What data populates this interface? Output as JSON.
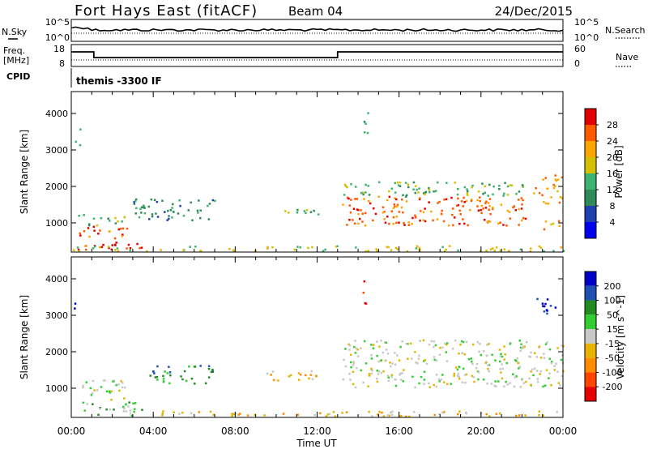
{
  "header": {
    "radar": "Fort Hays East (fitACF)",
    "beam": "Beam 04",
    "date": "24/Dec/2015"
  },
  "noise_panel": {
    "left_label": "N.Sky",
    "left_ticks": [
      "10^5",
      "10^0"
    ],
    "right_label": "N.Search",
    "right_ticks": [
      "10^5",
      "10^0"
    ]
  },
  "freq_panel": {
    "left_label_1": "Freq.",
    "left_label_2": "[MHz]",
    "left_ticks": [
      "18",
      "8"
    ],
    "right_label": "Nave",
    "right_ticks": [
      "60",
      "0"
    ]
  },
  "cpid": {
    "label": "CPID",
    "value": "themis -3300 IF"
  },
  "x_axis": {
    "label": "Time UT",
    "ticks": [
      "00:00",
      "04:00",
      "08:00",
      "12:00",
      "16:00",
      "20:00",
      "00:00"
    ]
  },
  "colors": {
    "power": [
      "#0000f0",
      "#2040b0",
      "#2e8b57",
      "#3cb371",
      "#d4c000",
      "#ffa500",
      "#ff5a00",
      "#e00000"
    ],
    "velocity": [
      "#0000c8",
      "#1e50b4",
      "#228b22",
      "#32cd32",
      "#c8c8c8",
      "#e6b400",
      "#ff8c00",
      "#ff4500",
      "#e60000"
    ]
  },
  "chart_data": [
    {
      "type": "heatmap",
      "panel": "power",
      "ylabel": "Slant Range [km]",
      "yticks": [
        "1000",
        "2000",
        "3000",
        "4000"
      ],
      "ylim": [
        200,
        4600
      ],
      "xlim_hours": [
        0,
        24
      ],
      "colorbar": {
        "label": "Power [dB]",
        "ticks": [
          "4",
          "8",
          "12",
          "16",
          "20",
          "24",
          "28"
        ],
        "range": [
          0,
          32
        ]
      },
      "regions": [
        {
          "t0": 0.2,
          "t1": 3.8,
          "r0": 220,
          "r1": 450,
          "level": 7
        },
        {
          "t0": 0.3,
          "t1": 2.7,
          "r0": 550,
          "r1": 900,
          "level": 6
        },
        {
          "t0": 0.2,
          "t1": 2.6,
          "r0": 900,
          "r1": 1200,
          "level": 3
        },
        {
          "t0": 3.0,
          "t1": 7.0,
          "r0": 1050,
          "r1": 1650,
          "level": 2
        },
        {
          "t0": 9.3,
          "t1": 12.5,
          "r0": 1200,
          "r1": 1350,
          "level": 3
        },
        {
          "t0": 13.2,
          "t1": 22.3,
          "r0": 900,
          "r1": 1700,
          "level": 6
        },
        {
          "t0": 13.2,
          "t1": 22.3,
          "r0": 1700,
          "r1": 2100,
          "level": 3
        },
        {
          "t0": 22.5,
          "t1": 24.0,
          "r0": 1500,
          "r1": 2300,
          "level": 5
        },
        {
          "t0": 23.0,
          "t1": 24.0,
          "r0": 800,
          "r1": 1100,
          "level": 5
        },
        {
          "t0": 14.2,
          "t1": 14.5,
          "r0": 3400,
          "r1": 4000,
          "level": 3
        },
        {
          "t0": 0.1,
          "t1": 0.4,
          "r0": 3100,
          "r1": 3600,
          "level": 3
        },
        {
          "t0": 0.0,
          "t1": 24.0,
          "r0": 200,
          "r1": 350,
          "level": 4
        }
      ]
    },
    {
      "type": "heatmap",
      "panel": "velocity",
      "ylabel": "Slant Range [km]",
      "yticks": [
        "1000",
        "2000",
        "3000",
        "4000"
      ],
      "ylim": [
        200,
        4600
      ],
      "xlim_hours": [
        0,
        24
      ],
      "colorbar": {
        "label": "Velocity [m s^-1]",
        "ticks": [
          "200",
          "100",
          "50",
          "15",
          "-15",
          "-50",
          "-100",
          "-200"
        ],
        "range": [
          -250,
          250
        ]
      },
      "regions": [
        {
          "t0": 0.2,
          "t1": 3.5,
          "r0": 200,
          "r1": 600,
          "level": 3
        },
        {
          "t0": 0.3,
          "t1": 2.8,
          "r0": 650,
          "r1": 1200,
          "level": 4
        },
        {
          "t0": 3.5,
          "t1": 7.0,
          "r0": 1100,
          "r1": 1600,
          "level": 2
        },
        {
          "t0": 9.4,
          "t1": 12.0,
          "r0": 1150,
          "r1": 1450,
          "level": 5
        },
        {
          "t0": 13.2,
          "t1": 24.0,
          "r0": 1000,
          "r1": 2300,
          "level": 4
        },
        {
          "t0": 14.2,
          "t1": 14.4,
          "r0": 3300,
          "r1": 4000,
          "level": 8
        },
        {
          "t0": 0.1,
          "t1": 0.4,
          "r0": 3100,
          "r1": 3400,
          "level": 0
        },
        {
          "t0": 22.7,
          "t1": 23.6,
          "r0": 3000,
          "r1": 3600,
          "level": 0
        },
        {
          "t0": 3.0,
          "t1": 24.0,
          "r0": 200,
          "r1": 350,
          "level": 5
        }
      ]
    }
  ]
}
